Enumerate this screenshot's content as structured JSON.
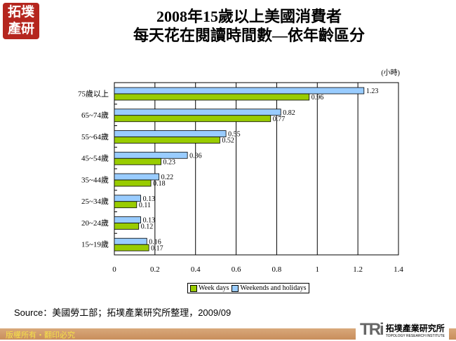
{
  "logo": {
    "text": "拓墣產研"
  },
  "chart_data": {
    "type": "bar",
    "orientation": "horizontal",
    "title": "2008年15歲以上美國消費者",
    "subtitle": "每天花在閱讀時間數—依年齡區分",
    "unit": "(小時)",
    "categories": [
      "75歲以上",
      "65~74歲",
      "55~64歲",
      "45~54歲",
      "35~44歲",
      "25~34歲",
      "20~24歲",
      "15~19歲"
    ],
    "series": [
      {
        "name": "Weekends and holidays",
        "color": "#99ccff",
        "values": [
          1.23,
          0.82,
          0.55,
          0.36,
          0.22,
          0.13,
          0.13,
          0.16
        ]
      },
      {
        "name": "Week days",
        "color": "#99cc00",
        "values": [
          0.96,
          0.77,
          0.52,
          0.23,
          0.18,
          0.11,
          0.12,
          0.17
        ]
      }
    ],
    "xlim": [
      0,
      1.4
    ],
    "xticks": [
      "0",
      "0.2",
      "0.4",
      "0.6",
      "0.8",
      "1",
      "1.2",
      "1.4"
    ],
    "grid": true,
    "legend_position": "bottom"
  },
  "source": "Source：美國勞工部；拓墣產業研究所整理，2009/09",
  "footer": {
    "copyright": "版權所有‧翻印必究",
    "brand": "TRi",
    "brand_cn": "拓墣產業研究所",
    "brand_en": "TOPOLOGY RESEARCH INSTITUTE"
  }
}
